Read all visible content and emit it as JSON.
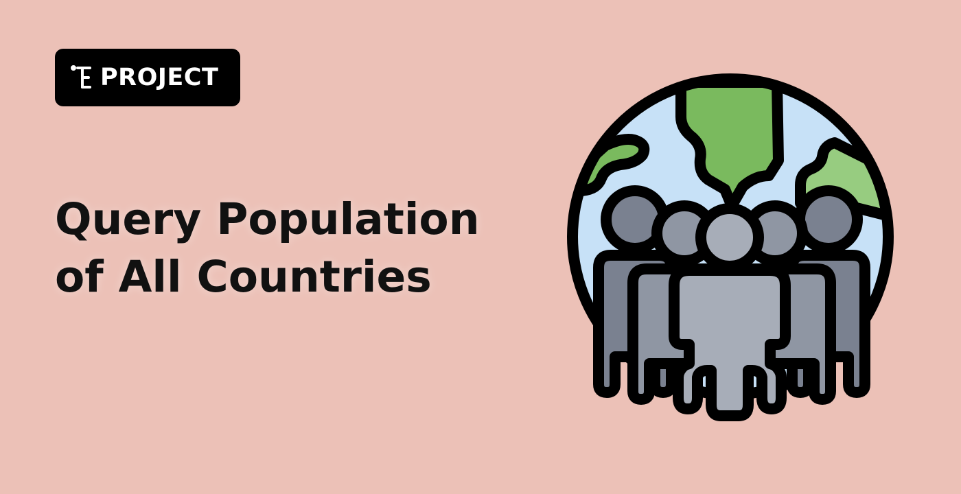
{
  "badge": {
    "label": "PROJECT",
    "icon": "labex-logo-icon"
  },
  "title": {
    "line1": "Query Population",
    "line2": "of All Countries"
  },
  "illustration": {
    "icon": "world-population-icon"
  },
  "colors": {
    "background": "#ecc1b7",
    "badge": "#000000",
    "ocean": "#c7e1f7",
    "land": "#7aba5e",
    "land_light": "#97cc80",
    "person_dark": "#7a8190",
    "person_mid": "#8f96a3",
    "person_light": "#a7adb8",
    "outline": "#000000"
  }
}
